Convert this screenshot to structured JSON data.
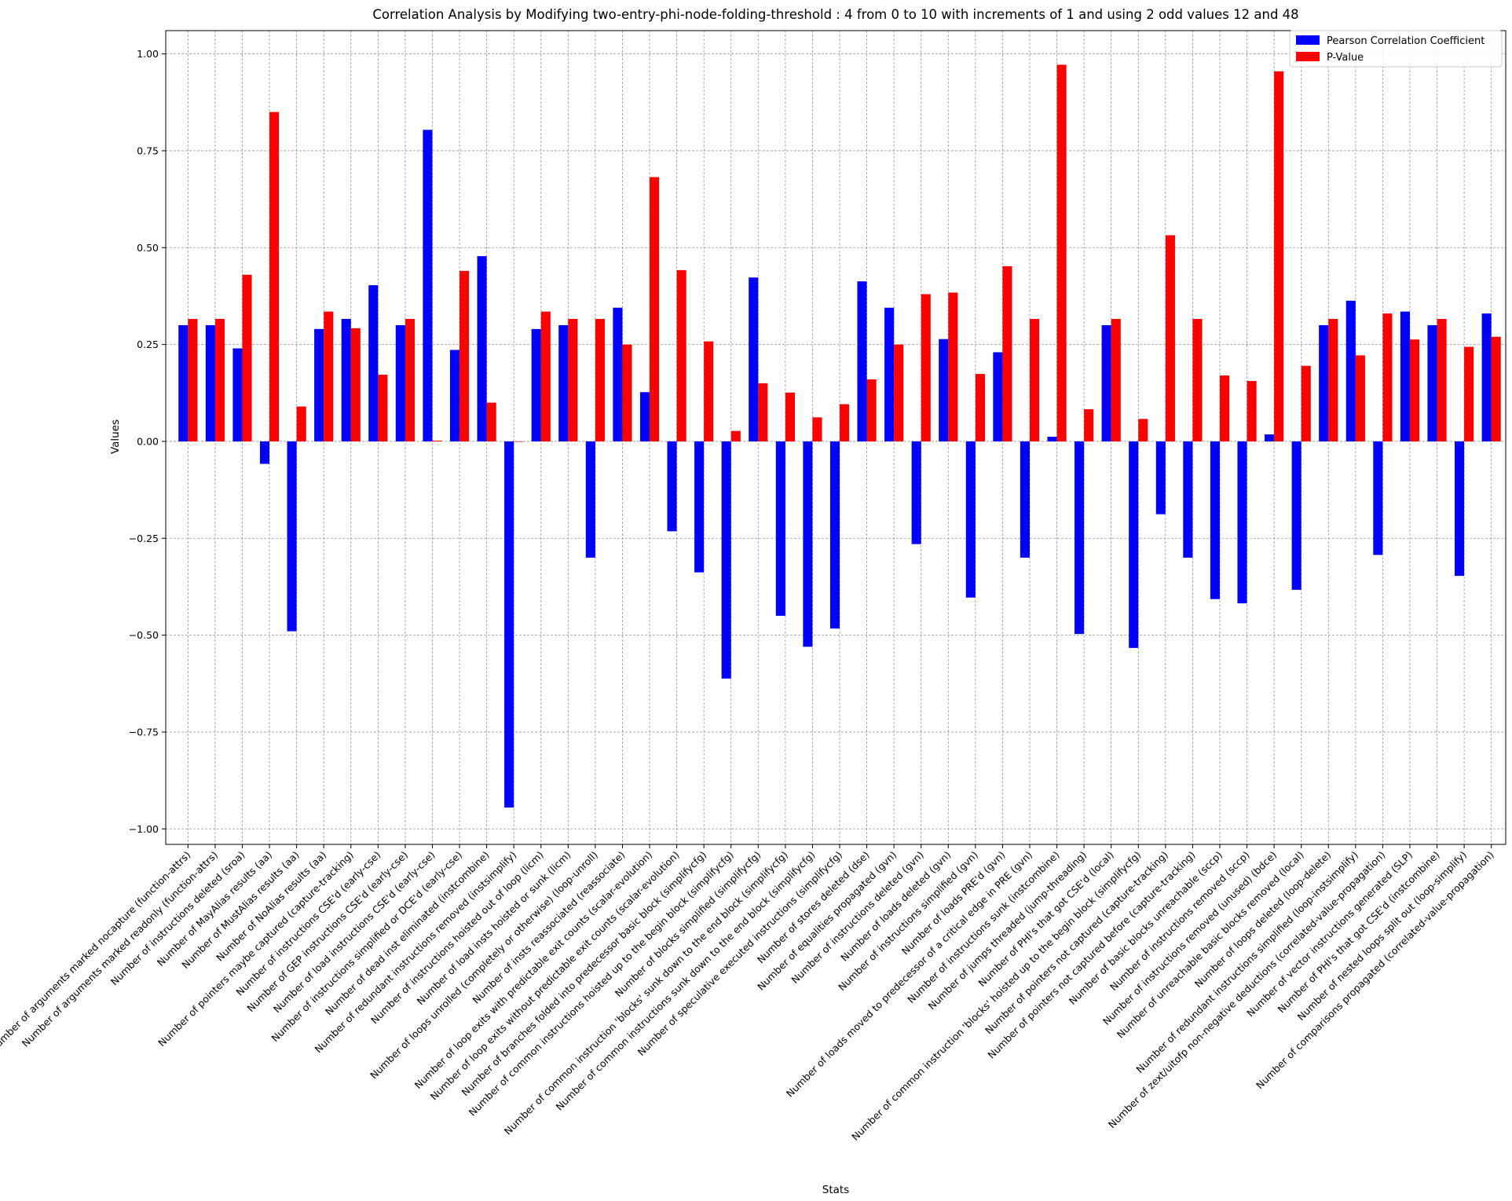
{
  "chart_data": {
    "type": "bar",
    "title": "Correlation Analysis by Modifying two-entry-phi-node-folding-threshold : 4 from 0 to 10 with increments of 1 and using 2 odd values 12 and 48",
    "xlabel": "Stats",
    "ylabel": "Values",
    "ylim": [
      -1.04,
      1.06
    ],
    "yticks": [
      1.0,
      0.75,
      0.5,
      0.25,
      0.0,
      -0.25,
      -0.5,
      -0.75,
      -1.0
    ],
    "ytick_labels": [
      "1.00",
      "0.75",
      "0.50",
      "0.25",
      "0.00",
      "−0.25",
      "−0.50",
      "−0.75",
      "−1.00"
    ],
    "grid": true,
    "legend_position": "top-right",
    "categories": [
      "Number of arguments marked nocapture (function-attrs)",
      "Number of arguments marked readonly (function-attrs)",
      "Number of instructions deleted (sroa)",
      "Number of MayAlias results (aa)",
      "Number of MustAlias results (aa)",
      "Number of NoAlias results (aa)",
      "Number of pointers maybe captured (capture-tracking)",
      "Number of instructions CSE'd (early-cse)",
      "Number of GEP instructions CSE'd (early-cse)",
      "Number of load instructions CSE'd (early-cse)",
      "Number of instructions simplified or DCE'd (early-cse)",
      "Number of dead inst eliminated (instcombine)",
      "Number of redundant instructions removed (instsimplify)",
      "Number of instructions hoisted out of loop (licm)",
      "Number of load insts hoisted or sunk (licm)",
      "Number of loops unrolled (completely or otherwise) (loop-unroll)",
      "Number of insts reassociated (reassociate)",
      "Number of loop exits with predictable exit counts (scalar-evolution)",
      "Number of loop exits without predictable exit counts (scalar-evolution)",
      "Number of branches folded into predecessor basic block (simplifycfg)",
      "Number of common instructions hoisted up to the begin block (simplifycfg)",
      "Number of blocks simplified (simplifycfg)",
      "Number of common instruction 'blocks' sunk down to the end block (simplifycfg)",
      "Number of common instructions sunk down to the end block (simplifycfg)",
      "Number of speculative executed instructions (simplifycfg)",
      "Number of stores deleted (dse)",
      "Number of equalities propagated (gvn)",
      "Number of instructions deleted (gvn)",
      "Number of loads deleted (gvn)",
      "Number of instructions simplified (gvn)",
      "Number of loads PRE'd (gvn)",
      "Number of loads moved to predecessor of a critical edge in PRE (gvn)",
      "Number of instructions sunk (instcombine)",
      "Number of jumps threaded (jump-threading)",
      "Number of PHI's that got CSE'd (local)",
      "Number of common instruction 'blocks' hoisted up to the begin block (simplifycfg)",
      "Number of pointers not captured (capture-tracking)",
      "Number of pointers not captured before (capture-tracking)",
      "Number of basic blocks unreachable (sccp)",
      "Number of instructions removed (sccp)",
      "Number of instructions removed (unused) (bdce)",
      "Number of unreachable basic blocks removed (local)",
      "Number of loops deleted (loop-delete)",
      "Number of redundant instructions simplified (loop-instsimplify)",
      "Number of zext/uitofp non-negative deductions (correlated-value-propagation)",
      "Number of vector instructions generated (SLP)",
      "Number of PHI's that got CSE'd (instcombine)",
      "Number of nested loops split out (loop-simplify)",
      "Number of comparisons propagated (correlated-value-propagation)"
    ],
    "series": [
      {
        "name": "Pearson Correlation Coefficient",
        "color": "#0000ff",
        "values": [
          0.3,
          0.3,
          0.24,
          -0.058,
          -0.49,
          0.29,
          0.316,
          0.403,
          0.3,
          0.804,
          0.236,
          0.478,
          -0.945,
          0.29,
          0.3,
          -0.3,
          0.345,
          0.127,
          -0.232,
          -0.338,
          -0.612,
          0.423,
          -0.45,
          -0.53,
          -0.483,
          0.413,
          0.345,
          -0.265,
          0.264,
          -0.403,
          0.23,
          -0.3,
          0.012,
          -0.497,
          0.3,
          -0.533,
          -0.188,
          -0.3,
          -0.407,
          -0.418,
          0.018,
          -0.383,
          0.3,
          0.363,
          -0.293,
          0.335,
          0.3,
          -0.347,
          0.33
        ]
      },
      {
        "name": "P-Value",
        "color": "#ff0000",
        "values": [
          0.316,
          0.316,
          0.43,
          0.85,
          0.09,
          0.335,
          0.292,
          0.172,
          0.316,
          0.002,
          0.44,
          0.1,
          0.0,
          0.335,
          0.316,
          0.316,
          0.25,
          0.682,
          0.442,
          0.258,
          0.027,
          0.15,
          0.126,
          0.062,
          0.096,
          0.16,
          0.25,
          0.38,
          0.384,
          0.174,
          0.452,
          0.316,
          0.972,
          0.083,
          0.316,
          0.058,
          0.532,
          0.316,
          0.17,
          0.156,
          0.955,
          0.195,
          0.316,
          0.222,
          0.33,
          0.263,
          0.316,
          0.244,
          0.27
        ]
      }
    ]
  }
}
